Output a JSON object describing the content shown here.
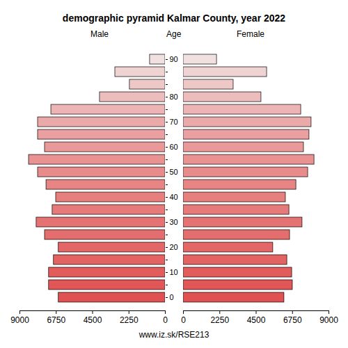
{
  "chart_data": {
    "type": "bar",
    "orientation": "horizontal",
    "title": "demographic pyramid Kalmar County, year 2022",
    "caption": "www.iz.sk/RSE213",
    "y_label": "Age",
    "categories": [
      "0",
      null,
      "10",
      null,
      "20",
      null,
      "30",
      null,
      "40",
      null,
      "50",
      null,
      "60",
      null,
      "70",
      null,
      "80",
      null,
      null,
      "90"
    ],
    "colors": [
      "#e05252",
      "#e15757",
      "#e25c5c",
      "#e36262",
      "#e46767",
      "#e46d6d",
      "#e57373",
      "#e67979",
      "#e77f7f",
      "#e78585",
      "#e88b8b",
      "#e99292",
      "#e99999",
      "#eaa0a0",
      "#ebaaaa",
      "#ecb4b4",
      "#edbdbd",
      "#eec7c7",
      "#efd2d2",
      "#f0e0e0"
    ],
    "series": [
      {
        "name": "Male",
        "values": [
          6600,
          7200,
          7200,
          6900,
          6600,
          7450,
          7970,
          6980,
          6760,
          7360,
          7880,
          8440,
          7450,
          7880,
          7880,
          7060,
          4050,
          2200,
          3100,
          950
        ]
      },
      {
        "name": "Female",
        "values": [
          6240,
          6760,
          6720,
          6420,
          5550,
          6590,
          7360,
          6550,
          6330,
          6980,
          7710,
          8100,
          7450,
          7790,
          7920,
          7280,
          4820,
          3100,
          5170,
          2070
        ]
      }
    ],
    "xlim": [
      0,
      9000
    ],
    "xticks": [
      0,
      2250,
      4500,
      6750,
      9000
    ]
  }
}
